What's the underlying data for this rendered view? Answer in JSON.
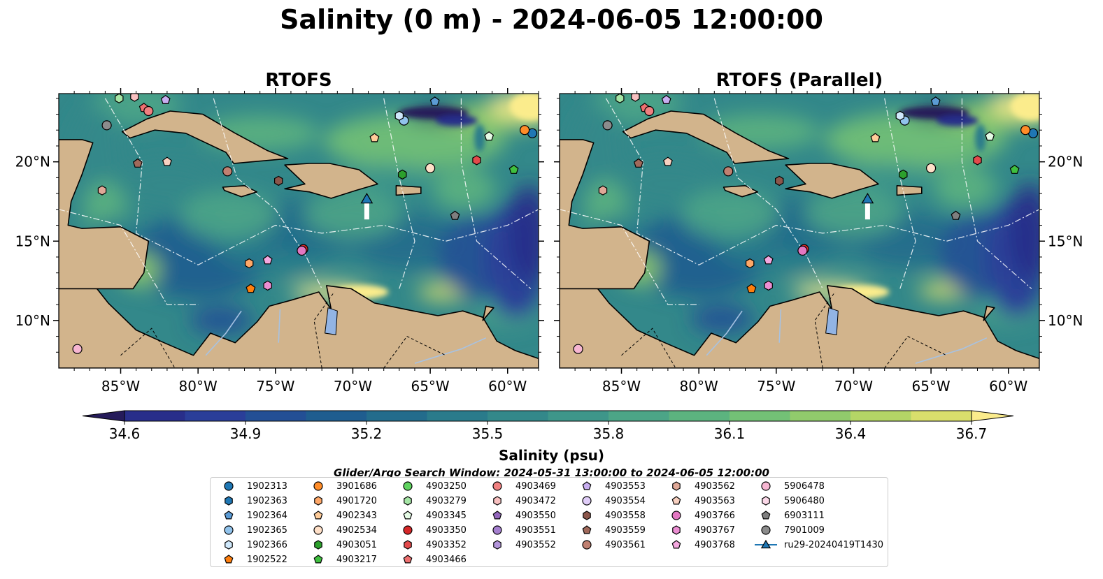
{
  "title": "Salinity (0 m) - 2024-06-05 12:00:00",
  "panels": [
    {
      "title": "RTOFS"
    },
    {
      "title": "RTOFS (Parallel)"
    }
  ],
  "colorbar": {
    "label": "Salinity (psu)",
    "ticks": [
      "34.6",
      "34.9",
      "35.2",
      "35.5",
      "35.8",
      "36.1",
      "36.4",
      "36.7"
    ],
    "range": [
      34.6,
      36.7
    ],
    "extend": "both",
    "colors": [
      "#251b5a",
      "#282e8a",
      "#2a3e99",
      "#234f95",
      "#1f5d8f",
      "#236c8c",
      "#2a7b8b",
      "#33888a",
      "#3e968a",
      "#4ca587",
      "#5cb37f",
      "#73c176",
      "#91cb6c",
      "#b4d566",
      "#d9df6c",
      "#fbec8c"
    ]
  },
  "search_window": "Glider/Argo Search Window: 2024-05-31 13:00:00 to 2024-06-05 12:00:00",
  "colors": {
    "land": "#d2b48c",
    "ocean_low": "#251b5a",
    "ocean_mid": "#3e968a",
    "ocean_high": "#fbec8c",
    "rivers": "#a7c2e2"
  },
  "chart_data": {
    "type": "map-scatter",
    "x_axis": {
      "range": [
        -89,
        -58
      ],
      "ticks": [
        -85,
        -80,
        -75,
        -70,
        -65,
        -60
      ],
      "tick_labels": [
        "85°W",
        "80°W",
        "75°W",
        "70°W",
        "65°W",
        "60°W"
      ]
    },
    "y_axis": {
      "range": [
        7,
        24.3
      ],
      "ticks": [
        10,
        15,
        20
      ],
      "tick_labels": [
        "10°N",
        "15°N",
        "20°N"
      ]
    },
    "grid": false,
    "legend_placement": "bottom-center",
    "floats": [
      {
        "id": "1902313",
        "symbol": "circle",
        "color": "#1f77b4",
        "lon": -58.4,
        "lat": 21.8
      },
      {
        "id": "1902363",
        "symbol": "hexagon",
        "color": "#1f77b4",
        "lon": null,
        "lat": null
      },
      {
        "id": "1902364",
        "symbol": "pentagon",
        "color": "#5b9bd5",
        "lon": -64.7,
        "lat": 23.8
      },
      {
        "id": "1902365",
        "symbol": "circle",
        "color": "#91c3ec",
        "lon": -66.7,
        "lat": 22.6
      },
      {
        "id": "1902366",
        "symbol": "hexagon",
        "color": "#cfe8fb",
        "lon": -67.0,
        "lat": 22.9
      },
      {
        "id": "1902522",
        "symbol": "pentagon",
        "color": "#ff7f0e",
        "lon": -76.6,
        "lat": 12.0
      },
      {
        "id": "3901686",
        "symbol": "circle",
        "color": "#ff8c28",
        "lon": -58.9,
        "lat": 22.0
      },
      {
        "id": "4901720",
        "symbol": "hexagon",
        "color": "#ffa868",
        "lon": -76.7,
        "lat": 13.6
      },
      {
        "id": "4902343",
        "symbol": "pentagon",
        "color": "#ffcc99",
        "lon": -68.6,
        "lat": 21.5
      },
      {
        "id": "4902534",
        "symbol": "circle",
        "color": "#ffe0c8",
        "lon": -65.0,
        "lat": 19.6
      },
      {
        "id": "4903051",
        "symbol": "hexagon",
        "color": "#2ca02c",
        "lon": -66.8,
        "lat": 19.2
      },
      {
        "id": "4903217",
        "symbol": "pentagon",
        "color": "#3fbf3f",
        "lon": -59.6,
        "lat": 19.5
      },
      {
        "id": "4903250",
        "symbol": "circle",
        "color": "#5fd35f",
        "lon": null,
        "lat": null
      },
      {
        "id": "4903279",
        "symbol": "hexagon",
        "color": "#a6e6a6",
        "lon": -85.1,
        "lat": 24.0
      },
      {
        "id": "4903345",
        "symbol": "pentagon",
        "color": "#e5fbe5",
        "lon": -61.2,
        "lat": 21.6
      },
      {
        "id": "4903350",
        "symbol": "circle",
        "color": "#d62728",
        "lon": -73.2,
        "lat": 14.5
      },
      {
        "id": "4903352",
        "symbol": "hexagon",
        "color": "#e34a4b",
        "lon": -62.0,
        "lat": 20.1
      },
      {
        "id": "4903466",
        "symbol": "pentagon",
        "color": "#ee7070",
        "lon": -83.5,
        "lat": 23.4
      },
      {
        "id": "4903469",
        "symbol": "circle",
        "color": "#f08080",
        "lon": -83.2,
        "lat": 23.2
      },
      {
        "id": "4903472",
        "symbol": "hexagon",
        "color": "#f8c0c0",
        "lon": -84.1,
        "lat": 24.1
      },
      {
        "id": "4903550",
        "symbol": "pentagon",
        "color": "#9467bd",
        "lon": null,
        "lat": null
      },
      {
        "id": "4903551",
        "symbol": "circle",
        "color": "#a57fcf",
        "lon": null,
        "lat": null
      },
      {
        "id": "4903552",
        "symbol": "hexagon",
        "color": "#b395db",
        "lon": null,
        "lat": null
      },
      {
        "id": "4903553",
        "symbol": "pentagon",
        "color": "#c8aef0",
        "lon": -82.1,
        "lat": 23.9
      },
      {
        "id": "4903554",
        "symbol": "circle",
        "color": "#e0cdf8",
        "lon": null,
        "lat": null
      },
      {
        "id": "4903558",
        "symbol": "hexagon",
        "color": "#8c564b",
        "lon": -74.8,
        "lat": 18.8
      },
      {
        "id": "4903559",
        "symbol": "pentagon",
        "color": "#a0695b",
        "lon": -83.9,
        "lat": 19.9
      },
      {
        "id": "4903561",
        "symbol": "circle",
        "color": "#c08071",
        "lon": -78.1,
        "lat": 19.4
      },
      {
        "id": "4903562",
        "symbol": "hexagon",
        "color": "#e0a897",
        "lon": -86.2,
        "lat": 18.2
      },
      {
        "id": "4903563",
        "symbol": "pentagon",
        "color": "#f8d0c0",
        "lon": -82.0,
        "lat": 20.0
      },
      {
        "id": "4903766",
        "symbol": "circle",
        "color": "#e377c2",
        "lon": -73.3,
        "lat": 14.4
      },
      {
        "id": "4903767",
        "symbol": "hexagon",
        "color": "#ec8ed3",
        "lon": -75.5,
        "lat": 12.2
      },
      {
        "id": "4903768",
        "symbol": "pentagon",
        "color": "#f5a8e0",
        "lon": -75.5,
        "lat": 13.8
      },
      {
        "id": "5906478",
        "symbol": "circle",
        "color": "#f7b6d2",
        "lon": -87.8,
        "lat": 8.2
      },
      {
        "id": "5906480",
        "symbol": "hexagon",
        "color": "#fbd8e8",
        "lon": null,
        "lat": null
      },
      {
        "id": "6903111",
        "symbol": "pentagon",
        "color": "#7f7f7f",
        "lon": -63.4,
        "lat": 16.6
      },
      {
        "id": "7901009",
        "symbol": "circle",
        "color": "#8c8c8c",
        "lon": -85.9,
        "lat": 22.3
      }
    ],
    "glider": {
      "id": "ru29-20240419T1430",
      "symbol": "triangle",
      "color": "#1f77b4",
      "lon": -69.1,
      "lat": 17.6
    }
  },
  "legend_order": [
    [
      "1902313",
      "1902363",
      "1902364",
      "1902365",
      "1902366",
      "1902522"
    ],
    [
      "3901686",
      "4901720",
      "4902343",
      "4902534",
      "4903051",
      "4903217"
    ],
    [
      "4903250",
      "4903279",
      "4903345",
      "4903350",
      "4903352",
      "4903466"
    ],
    [
      "4903469",
      "4903472",
      "4903550",
      "4903551",
      "4903552"
    ],
    [
      "4903553",
      "4903554",
      "4903558",
      "4903559",
      "4903561"
    ],
    [
      "4903562",
      "4903563",
      "4903766",
      "4903767",
      "4903768"
    ],
    [
      "5906478",
      "5906480",
      "6903111",
      "7901009",
      "ru29-20240419T1430"
    ]
  ]
}
